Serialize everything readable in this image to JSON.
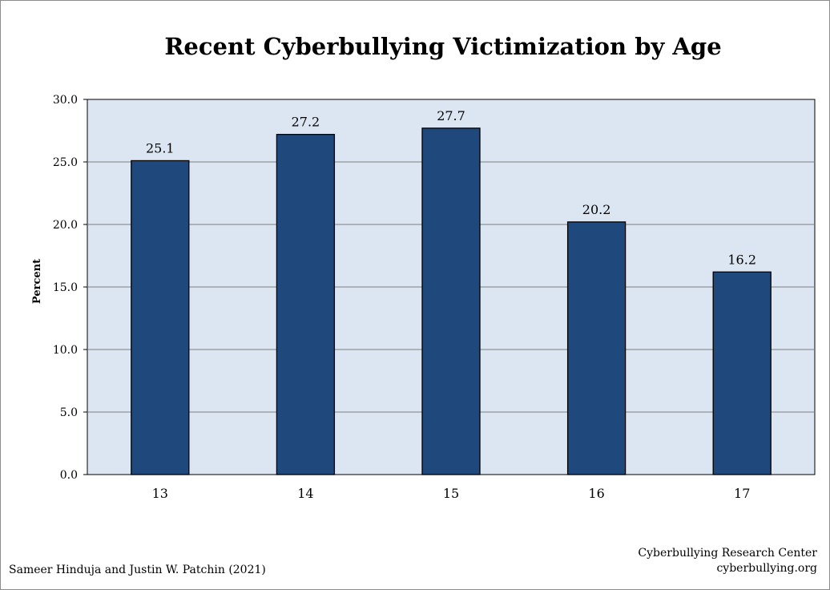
{
  "chart_data": {
    "type": "bar",
    "title": "Recent Cyberbullying Victimization by Age",
    "xlabel": "",
    "ylabel": "Percent",
    "categories": [
      "13",
      "14",
      "15",
      "16",
      "17"
    ],
    "values": [
      25.1,
      27.2,
      27.7,
      20.2,
      16.2
    ],
    "value_labels": [
      "25.1",
      "27.2",
      "27.7",
      "20.2",
      "16.2"
    ],
    "ylim": [
      0,
      30
    ],
    "yticks": [
      0,
      5,
      10,
      15,
      20,
      25,
      30
    ],
    "ytick_labels": [
      "0.0",
      "5.0",
      "10.0",
      "15.0",
      "20.0",
      "25.0",
      "30.0"
    ],
    "grid": true,
    "legend": "none",
    "colors": {
      "bar": "#1f497d",
      "plot_background": "#dce6f2",
      "gridline": "#808080"
    }
  },
  "footer": {
    "source": "Sameer Hinduja and Justin W. Patchin (2021)",
    "org": "Cyberbullying Research Center",
    "website": "cyberbullying.org"
  }
}
